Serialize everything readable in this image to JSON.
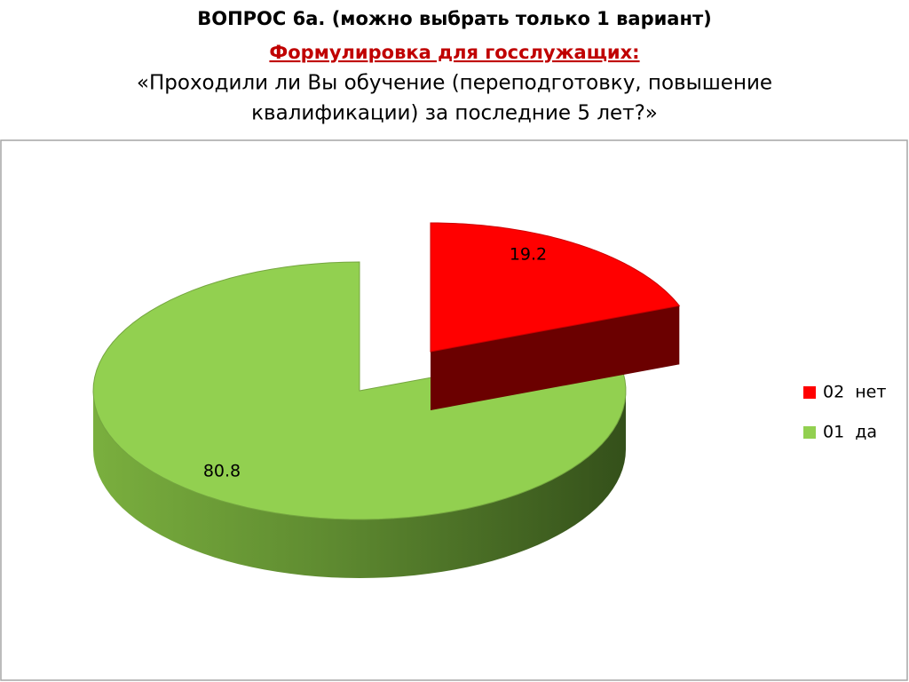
{
  "chart_data": {
    "type": "pie",
    "title": "ВОПРОС 6а. (можно выбрать только 1 вариант)",
    "subtitle": "Формулировка для госслужащих:",
    "question": [
      "«Проходили ли Вы обучение (переподготовку, повышение",
      "квалификации) за последние 5 лет?»"
    ],
    "categories": [
      "02  нет",
      "01  да"
    ],
    "values": [
      19.2,
      80.8
    ],
    "colors": [
      "#ff0000",
      "#92d050"
    ]
  }
}
